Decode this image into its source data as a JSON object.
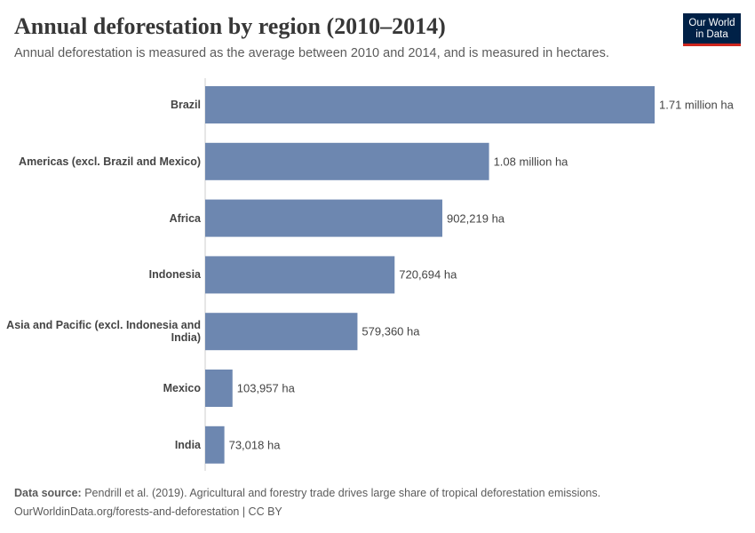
{
  "chart_data": {
    "type": "hbar",
    "title": "Annual deforestation by region (2010–2014)",
    "subtitle": "Annual deforestation is measured as the average between 2010 and 2014, and is measured in hectares.",
    "categories": [
      "Brazil",
      "Americas (excl. Brazil and Mexico)",
      "Africa",
      "Indonesia",
      "Asia and Pacific (excl. Indonesia and India)",
      "Mexico",
      "India"
    ],
    "values": [
      1710000,
      1080000,
      902219,
      720694,
      579360,
      103957,
      73018
    ],
    "value_labels": [
      "1.71 million ha",
      "1.08 million ha",
      "902,219 ha",
      "720,694 ha",
      "579,360 ha",
      "103,957 ha",
      "73,018 ha"
    ],
    "color": "#6d87b0",
    "source_label": "Data source:",
    "source": "Pendrill et al. (2019). Agricultural and forestry trade drives large share of tropical deforestation emissions.",
    "url": "OurWorldinData.org/forests-and-deforestation | CC BY",
    "logo": [
      "Our World",
      "in Data"
    ]
  }
}
